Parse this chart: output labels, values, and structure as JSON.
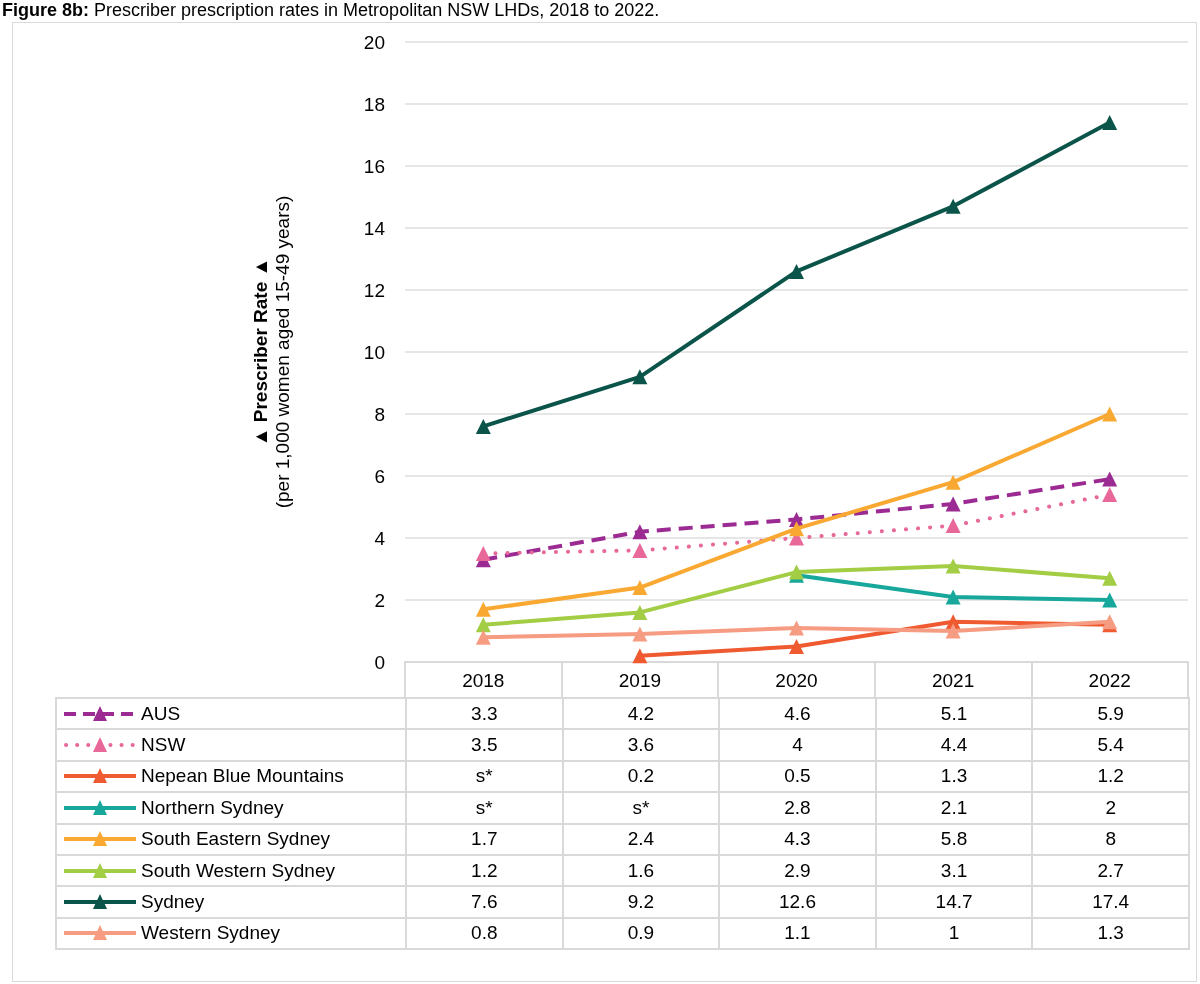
{
  "chart_data": {
    "type": "line",
    "title": "Figure 8b: Prescriber prescription rates in Metropolitan NSW LHDs, 2018 to 2022.",
    "ylabel": "▲ Prescriber Rate ▲\n(per 1,000 women aged 15-49 years)",
    "categories": [
      "2018",
      "2019",
      "2020",
      "2021",
      "2022"
    ],
    "ylim": [
      0,
      20
    ],
    "yticks": [
      0,
      2,
      4,
      6,
      8,
      10,
      12,
      14,
      16,
      18,
      20
    ],
    "grid": "y",
    "legend": "bottom",
    "marker": "triangle",
    "series": [
      {
        "name": "AUS",
        "color": "#9b2a92",
        "line_style": "dashed",
        "values": [
          3.3,
          4.2,
          4.6,
          5.1,
          5.9
        ],
        "value_labels": [
          "3.3",
          "4.2",
          "4.6",
          "5.1",
          "5.9"
        ]
      },
      {
        "name": "NSW",
        "color": "#e8689a",
        "line_style": "dotted",
        "values": [
          3.5,
          3.6,
          4,
          4.4,
          5.4
        ],
        "value_labels": [
          "3.5",
          "3.6",
          "4",
          "4.4",
          "5.4"
        ]
      },
      {
        "name": "Nepean Blue Mountains",
        "color": "#f05a30",
        "line_style": "solid",
        "values": [
          null,
          0.2,
          0.5,
          1.3,
          1.2
        ],
        "value_labels": [
          "s*",
          "0.2",
          "0.5",
          "1.3",
          "1.2"
        ]
      },
      {
        "name": "Northern Sydney",
        "color": "#17a89b",
        "line_style": "solid",
        "values": [
          null,
          null,
          2.8,
          2.1,
          2
        ],
        "value_labels": [
          "s*",
          "s*",
          "2.8",
          "2.1",
          "2"
        ]
      },
      {
        "name": "South Eastern Sydney",
        "color": "#f9a832",
        "line_style": "solid",
        "values": [
          1.7,
          2.4,
          4.3,
          5.8,
          8
        ],
        "value_labels": [
          "1.7",
          "2.4",
          "4.3",
          "5.8",
          "8"
        ]
      },
      {
        "name": "South Western Sydney",
        "color": "#a2cd44",
        "line_style": "solid",
        "values": [
          1.2,
          1.6,
          2.9,
          3.1,
          2.7
        ],
        "value_labels": [
          "1.2",
          "1.6",
          "2.9",
          "3.1",
          "2.7"
        ]
      },
      {
        "name": "Sydney",
        "color": "#0b5449",
        "line_style": "solid",
        "values": [
          7.6,
          9.2,
          12.6,
          14.7,
          17.4
        ],
        "value_labels": [
          "7.6",
          "9.2",
          "12.6",
          "14.7",
          "17.4"
        ]
      },
      {
        "name": "Western Sydney",
        "color": "#f69c82",
        "line_style": "solid",
        "values": [
          0.8,
          0.9,
          1.1,
          1,
          1.3
        ],
        "value_labels": [
          "0.8",
          "0.9",
          "1.1",
          "1",
          "1.3"
        ]
      }
    ]
  }
}
